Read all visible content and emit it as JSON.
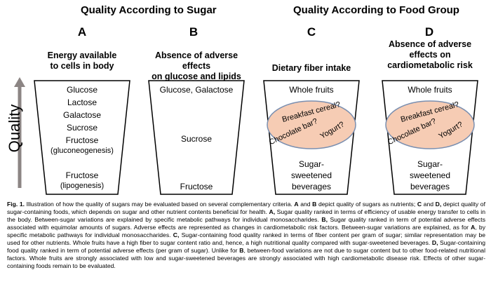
{
  "headings": {
    "sugar": "Quality According to Sugar",
    "food_group": "Quality According to Food Group"
  },
  "axis_label": "Quality",
  "panels": [
    {
      "letter": "A",
      "title_lines": [
        "Energy available",
        "to cells in body"
      ],
      "items": [
        "Glucose",
        "Lactose",
        "Galactose",
        "Sucrose",
        "Fructose",
        "(gluconeogenesis)",
        "Fructose",
        "(lipogenesis)"
      ]
    },
    {
      "letter": "B",
      "title_lines": [
        "Absence of adverse effects",
        "on glucose and lipids"
      ],
      "items": [
        "Glucose, Galactose",
        "Sucrose",
        "Fructose"
      ]
    },
    {
      "letter": "C",
      "title_lines": [
        "Dietary fiber intake"
      ],
      "top": "Whole fruits",
      "oval_items": [
        "Breakfast cereal?",
        "Chocolate bar?",
        "Yogurt?"
      ],
      "bottom_lines": [
        "Sugar-",
        "sweetened",
        "beverages"
      ]
    },
    {
      "letter": "D",
      "title_lines": [
        "Absence of adverse",
        "effects on",
        "cardiometabolic risk"
      ],
      "top": "Whole fruits",
      "oval_items": [
        "Breakfast cereal?",
        "Chocolate bar?",
        "Yogurt?"
      ],
      "bottom_lines": [
        "Sugar-",
        "sweetened",
        "beverages"
      ]
    }
  ],
  "caption": {
    "fig": "Fig. 1.",
    "t1": " Illustration of how the quality of sugars may be evaluated based on several complementary criteria. ",
    "A": "A",
    "t2": " and ",
    "B": "B",
    "t3": " depict quality of sugars as nutrients; ",
    "C": "C",
    "t4": " and ",
    "D": "D,",
    "t5": " depict quality of sugar-containing foods, which depends on sugar and other nutrient contents beneficial for health. ",
    "A2": "A,",
    "t6": " Sugar quality ranked in terms of efficiency of usable energy transfer to cells in the body. Between-sugar variations are explained by specific metabolic pathways for individual monosaccharides. ",
    "B2": "B,",
    "t7": " Sugar quality ranked in term of potential adverse effects associated with equimolar amounts of sugars. Adverse effects are represented as changes in cardiometabolic risk factors. Between-sugar variations are explained, as for ",
    "A3": "A",
    "t8": ", by specific metabolic pathways for individual monosaccharides. ",
    "C2": "C,",
    "t9": " Sugar-containing food quality ranked in terms of fiber content per gram of sugar; similar representation may be used for other nutrients. Whole fruits have a high fiber to sugar content ratio and, hence, a high nutritional quality compared with sugar-sweetened beverages. ",
    "D2": "D,",
    "t10": " Sugar-containing food quality ranked in term of potential adverse effects (per gram of sugar). Unlike for ",
    "B3": "B",
    "t11": ", between-food variations are not due to sugar content but to other food-related nutritional factors. Whole fruits are strongly associated with low and sugar-sweetened beverages are strongly associated with high cardiometabolic disease risk. Effects of other sugar-containing foods remain to be evaluated."
  },
  "colors": {
    "oval_fill": "#f6ccb4",
    "oval_stroke": "#7a8fb0",
    "arrow": "#8c8584"
  }
}
